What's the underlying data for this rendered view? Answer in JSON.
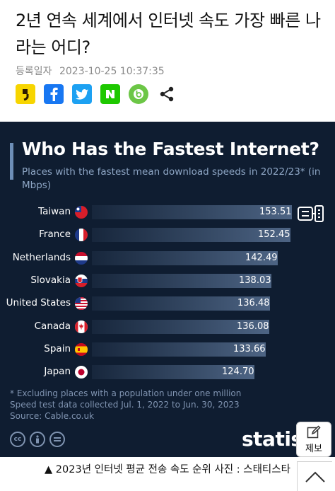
{
  "article": {
    "headline": "2년 연속 세계에서 인터넷 속도 가장 빠른 나라는 어디?",
    "date_label": "등록일자",
    "date_value": "2023-10-25 10:37:35"
  },
  "share": {
    "icons": [
      "kakaostory-icon",
      "facebook-icon",
      "twitter-icon",
      "naver-icon",
      "band-icon",
      "share-icon"
    ]
  },
  "colors": {
    "background": "#0f1d31",
    "bar_end": "#4d6484",
    "subtitle": "#8ea6c5"
  },
  "chart_data": {
    "type": "bar",
    "orientation": "horizontal",
    "title": "Who Has the Fastest Internet?",
    "subtitle": "Places with the fastest mean download speeds in 2022/23* (in Mbps)",
    "categories": [
      "Taiwan",
      "France",
      "Netherlands",
      "Slovakia",
      "United States",
      "Canada",
      "Spain",
      "Japan"
    ],
    "values": [
      153.51,
      152.45,
      142.49,
      138.03,
      136.48,
      136.08,
      133.66,
      124.7
    ],
    "value_labels": [
      "153.51",
      "152.45",
      "142.49",
      "138.03",
      "136.48",
      "136.08",
      "133.66",
      "124.70"
    ],
    "flags": [
      "taiwan-flag-icon",
      "france-flag-icon",
      "netherlands-flag-icon",
      "slovakia-flag-icon",
      "united-states-flag-icon",
      "canada-flag-icon",
      "spain-flag-icon",
      "japan-flag-icon"
    ],
    "xlim": [
      0,
      153.51
    ],
    "grid": false,
    "legend": "none",
    "footnotes": [
      "* Excluding places with a population under one million",
      "Speed test data collected Jul. 1, 2022 to Jun. 30, 2023",
      "Source: Cable.co.uk"
    ],
    "brand": "statista"
  },
  "report_button": {
    "label": "제보"
  },
  "caption": "▲ 2023년 인터넷 평균 전송 속도 순위 사진 : 스태티스타"
}
